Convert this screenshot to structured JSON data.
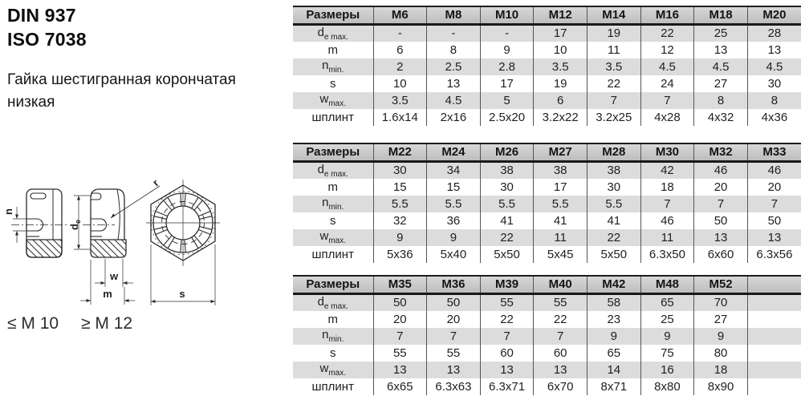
{
  "page": {
    "standard_lines": [
      "DIN 937",
      "ISO 7038"
    ],
    "description_lines": [
      "Гайка шестигранная корончатая",
      "низкая"
    ]
  },
  "drawing": {
    "labels": {
      "n": "n",
      "d": "d",
      "d_sub": "e",
      "r": "r",
      "w": "w",
      "m": "m",
      "s": "s"
    },
    "size_notes": [
      "≤ M 10",
      "≥ M 12"
    ]
  },
  "colors": {
    "table_header_bg": "#c6c6c6",
    "row_stripe_bg": "#dcdcdc",
    "border_dark": "#1c1c1c",
    "text": "#1f1f1f"
  },
  "tables": [
    {
      "header": [
        "Размеры",
        "M6",
        "M8",
        "M10",
        "M12",
        "M14",
        "M16",
        "M18",
        "M20"
      ],
      "rows": [
        {
          "label": "d",
          "label_sub": "e max.",
          "values": [
            "-",
            "-",
            "-",
            "17",
            "19",
            "22",
            "25",
            "28"
          ]
        },
        {
          "label": "m",
          "label_sub": "",
          "values": [
            "6",
            "8",
            "9",
            "10",
            "11",
            "12",
            "13",
            "13"
          ]
        },
        {
          "label": "n",
          "label_sub": "min.",
          "values": [
            "2",
            "2.5",
            "2.8",
            "3.5",
            "3.5",
            "4.5",
            "4.5",
            "4.5"
          ]
        },
        {
          "label": "s",
          "label_sub": "",
          "values": [
            "10",
            "13",
            "17",
            "19",
            "22",
            "24",
            "27",
            "30"
          ]
        },
        {
          "label": "w",
          "label_sub": "max.",
          "values": [
            "3.5",
            "4.5",
            "5",
            "6",
            "7",
            "7",
            "8",
            "8"
          ]
        },
        {
          "label": "шплинт",
          "label_sub": "",
          "values": [
            "1.6x14",
            "2x16",
            "2.5x20",
            "3.2x22",
            "3.2x25",
            "4x28",
            "4x32",
            "4x36"
          ]
        }
      ]
    },
    {
      "header": [
        "Размеры",
        "M22",
        "M24",
        "M26",
        "M27",
        "M28",
        "M30",
        "M32",
        "M33"
      ],
      "rows": [
        {
          "label": "d",
          "label_sub": "e max.",
          "values": [
            "30",
            "34",
            "38",
            "38",
            "38",
            "42",
            "46",
            "46"
          ]
        },
        {
          "label": "m",
          "label_sub": "",
          "values": [
            "15",
            "15",
            "30",
            "17",
            "30",
            "18",
            "20",
            "20"
          ]
        },
        {
          "label": "n",
          "label_sub": "min.",
          "values": [
            "5.5",
            "5.5",
            "5.5",
            "5.5",
            "5.5",
            "7",
            "7",
            "7"
          ]
        },
        {
          "label": "s",
          "label_sub": "",
          "values": [
            "32",
            "36",
            "41",
            "41",
            "41",
            "46",
            "50",
            "50"
          ]
        },
        {
          "label": "w",
          "label_sub": "max.",
          "values": [
            "9",
            "9",
            "22",
            "11",
            "22",
            "11",
            "13",
            "13"
          ]
        },
        {
          "label": "шплинт",
          "label_sub": "",
          "values": [
            "5x36",
            "5x40",
            "5x50",
            "5x45",
            "5x50",
            "6.3x50",
            "6x60",
            "6.3x56"
          ]
        }
      ]
    },
    {
      "header": [
        "Размеры",
        "M35",
        "M36",
        "M39",
        "M40",
        "M42",
        "M48",
        "M52",
        ""
      ],
      "rows": [
        {
          "label": "d",
          "label_sub": "e max.",
          "values": [
            "50",
            "50",
            "55",
            "55",
            "58",
            "65",
            "70",
            ""
          ]
        },
        {
          "label": "m",
          "label_sub": "",
          "values": [
            "20",
            "20",
            "22",
            "22",
            "23",
            "25",
            "27",
            ""
          ]
        },
        {
          "label": "n",
          "label_sub": "min.",
          "values": [
            "7",
            "7",
            "7",
            "7",
            "9",
            "9",
            "9",
            ""
          ]
        },
        {
          "label": "s",
          "label_sub": "",
          "values": [
            "55",
            "55",
            "60",
            "60",
            "65",
            "75",
            "80",
            ""
          ]
        },
        {
          "label": "w",
          "label_sub": "max.",
          "values": [
            "13",
            "13",
            "13",
            "13",
            "14",
            "16",
            "18",
            ""
          ]
        },
        {
          "label": "шплинт",
          "label_sub": "",
          "values": [
            "6x65",
            "6.3x63",
            "6.3x71",
            "6x70",
            "8x71",
            "8x80",
            "8x90",
            ""
          ]
        }
      ]
    }
  ]
}
